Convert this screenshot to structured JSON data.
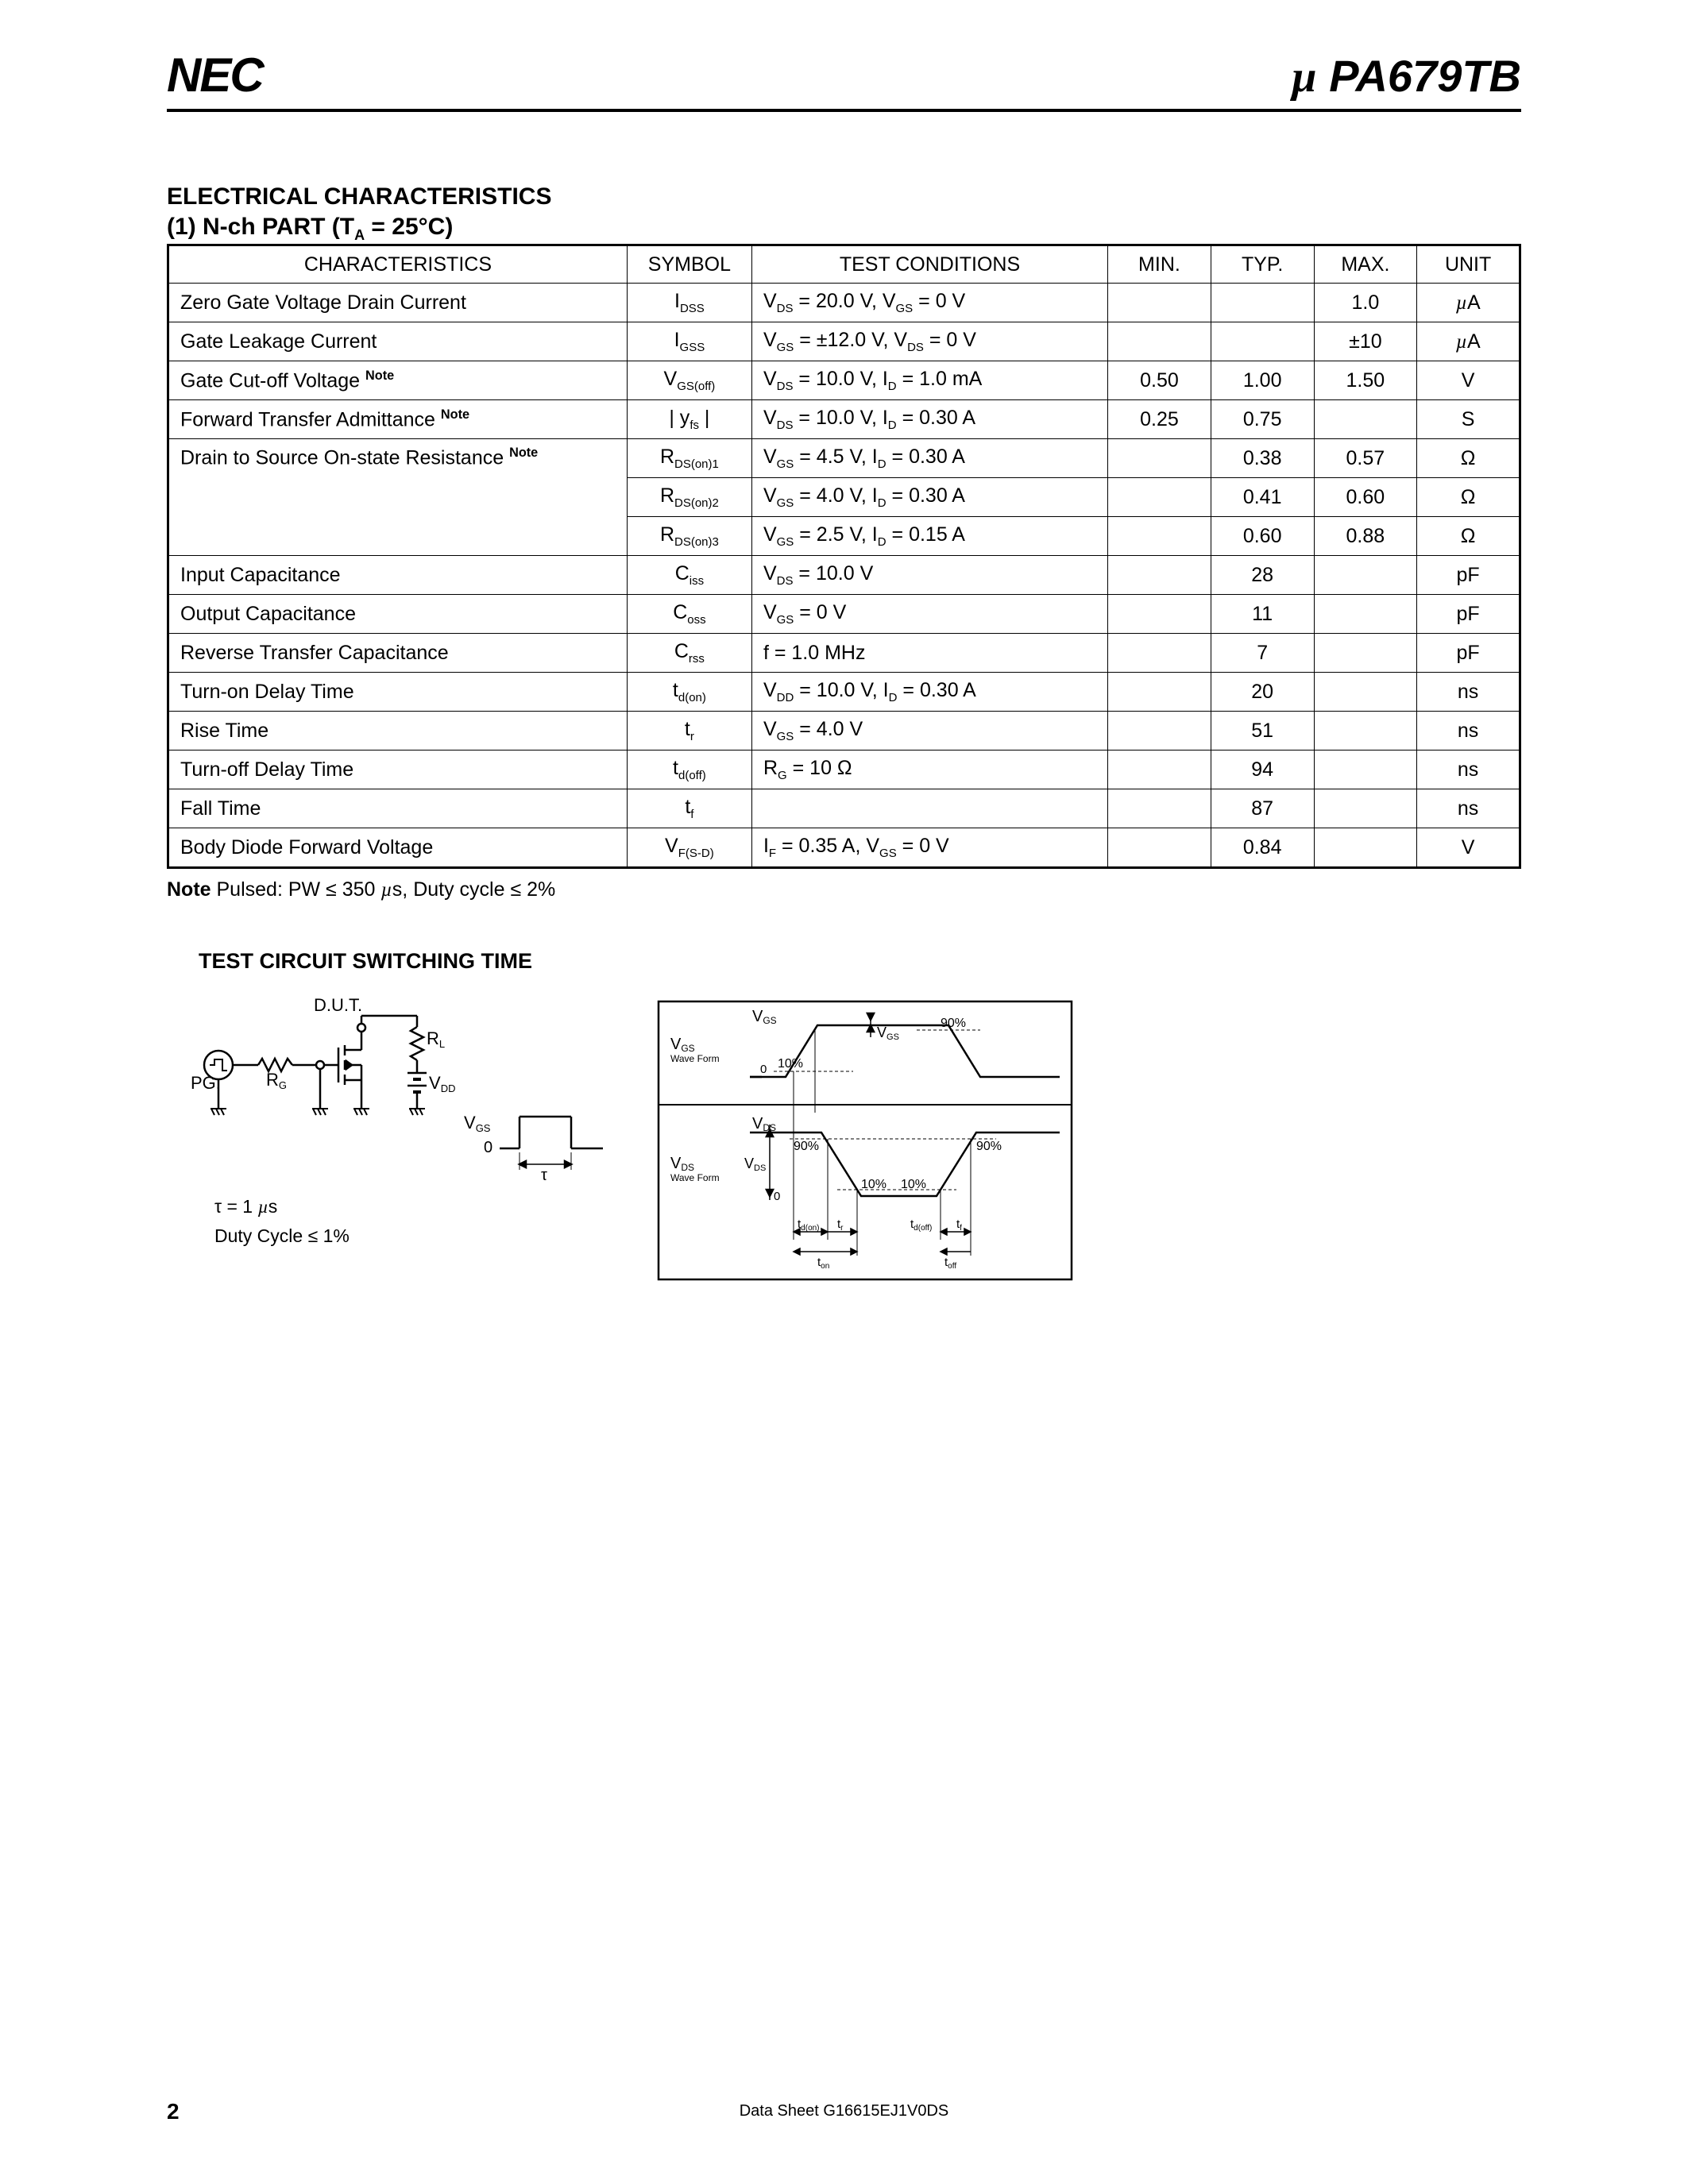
{
  "header": {
    "logo_text": "NEC",
    "part_prefix": "µ",
    "part_number": " PA679TB"
  },
  "section": {
    "title": "ELECTRICAL  CHARACTERISTICS",
    "subtitle_prefix": "(1)  N-ch PART (T",
    "subtitle_sub": "A",
    "subtitle_suffix": " = 25°C)"
  },
  "table": {
    "headers": [
      "CHARACTERISTICS",
      "SYMBOL",
      "TEST CONDITIONS",
      "MIN.",
      "TYP.",
      "MAX.",
      "UNIT"
    ],
    "rows": [
      {
        "char": "Zero Gate Voltage Drain Current",
        "note": false,
        "sym_html": "I<sub>DSS</sub>",
        "cond_html": "V<sub>DS</sub> = 20.0 V, V<sub>GS</sub> = 0 V",
        "min": "",
        "typ": "",
        "max": "1.0",
        "unit_html": "<span class='mu'>µ</span>A"
      },
      {
        "char": "Gate Leakage Current",
        "note": false,
        "sym_html": "I<sub>GSS</sub>",
        "cond_html": "V<sub>GS</sub> = ±12.0 V, V<sub>DS</sub> = 0 V",
        "min": "",
        "typ": "",
        "max": "±10",
        "unit_html": "<span class='mu'>µ</span>A"
      },
      {
        "char": "Gate Cut-off Voltage",
        "note": true,
        "sym_html": "V<sub>GS(off)</sub>",
        "cond_html": "V<sub>DS</sub> = 10.0 V, I<sub>D</sub> = 1.0 mA",
        "min": "0.50",
        "typ": "1.00",
        "max": "1.50",
        "unit_html": "V"
      },
      {
        "char": "Forward Transfer Admittance",
        "note": true,
        "sym_html": "| y<sub>fs</sub> |",
        "cond_html": "V<sub>DS</sub> = 10.0 V, I<sub>D</sub> = 0.30 A",
        "min": "0.25",
        "typ": "0.75",
        "max": "",
        "unit_html": "S"
      },
      {
        "char": "Drain to Source On-state Resistance",
        "note": true,
        "rowspan": 3,
        "sym_html": "R<sub>DS(on)1</sub>",
        "cond_html": "V<sub>GS</sub> = 4.5 V, I<sub>D</sub> = 0.30 A",
        "min": "",
        "typ": "0.38",
        "max": "0.57",
        "unit_html": "Ω"
      },
      {
        "char_skip": true,
        "sym_html": "R<sub>DS(on)2</sub>",
        "cond_html": "V<sub>GS</sub> = 4.0 V, I<sub>D</sub> = 0.30 A",
        "min": "",
        "typ": "0.41",
        "max": "0.60",
        "unit_html": "Ω"
      },
      {
        "char_skip": true,
        "sym_html": "R<sub>DS(on)3</sub>",
        "cond_html": "V<sub>GS</sub> = 2.5 V, I<sub>D</sub> = 0.15 A",
        "min": "",
        "typ": "0.60",
        "max": "0.88",
        "unit_html": "Ω"
      },
      {
        "char": "Input Capacitance",
        "note": false,
        "sym_html": "C<sub>iss</sub>",
        "cond_html": "V<sub>DS</sub> = 10.0 V",
        "min": "",
        "typ": "28",
        "max": "",
        "unit_html": "pF"
      },
      {
        "char": "Output Capacitance",
        "note": false,
        "sym_html": "C<sub>oss</sub>",
        "cond_html": "V<sub>GS</sub> = 0 V",
        "min": "",
        "typ": "11",
        "max": "",
        "unit_html": "pF"
      },
      {
        "char": "Reverse Transfer Capacitance",
        "note": false,
        "sym_html": "C<sub>rss</sub>",
        "cond_html": "f = 1.0 MHz",
        "min": "",
        "typ": "7",
        "max": "",
        "unit_html": "pF"
      },
      {
        "char": "Turn-on Delay Time",
        "note": false,
        "sym_html": "t<sub>d(on)</sub>",
        "cond_html": "V<sub>DD</sub> = 10.0 V, I<sub>D</sub> = 0.30 A",
        "min": "",
        "typ": "20",
        "max": "",
        "unit_html": "ns"
      },
      {
        "char": "Rise Time",
        "note": false,
        "sym_html": "t<sub>r</sub>",
        "cond_html": "V<sub>GS</sub> = 4.0 V",
        "min": "",
        "typ": "51",
        "max": "",
        "unit_html": "ns"
      },
      {
        "char": "Turn-off Delay Time",
        "note": false,
        "sym_html": "t<sub>d(off)</sub>",
        "cond_html": "R<sub>G</sub> = 10 Ω",
        "min": "",
        "typ": "94",
        "max": "",
        "unit_html": "ns"
      },
      {
        "char": "Fall Time",
        "note": false,
        "sym_html": "t<sub>f</sub>",
        "cond_html": "",
        "min": "",
        "typ": "87",
        "max": "",
        "unit_html": "ns"
      },
      {
        "char": "Body Diode Forward Voltage",
        "note": false,
        "sym_html": "V<sub>F(S-D)</sub>",
        "cond_html": "I<sub>F</sub> = 0.35 A, V<sub>GS</sub> = 0 V",
        "min": "",
        "typ": "0.84",
        "max": "",
        "unit_html": "V"
      }
    ]
  },
  "note": {
    "label": "Note",
    "text_html": "  Pulsed: PW ≤ 350 <span class='mu'>µ</span>s, Duty cycle ≤ 2%"
  },
  "test_circuit": {
    "title": "TEST CIRCUIT    SWITCHING TIME",
    "labels": {
      "dut": "D.U.T.",
      "rl": "R",
      "rl_sub": "L",
      "rg": "R",
      "rg_sub": "G",
      "pg": "PG.",
      "vdd": "V",
      "vdd_sub": "DD",
      "vgs_wave": "V",
      "vgs_sub": "GS",
      "zero": "0",
      "tau": "τ",
      "tau_eq": "τ = 1 ",
      "tau_unit": "µ",
      "tau_s": "s",
      "duty": "Duty Cycle ≤ 1%"
    },
    "timing": {
      "vgs_label": "V",
      "vgs_sub": "GS",
      "waveform": "Wave Form",
      "vds_label": "V",
      "vds_sub": "DS",
      "zero": "0",
      "p10": "10%",
      "p90": "90%",
      "tdon": "t",
      "tdon_sub": "d(on)",
      "tr": "t",
      "tr_sub": "r",
      "ton": "t",
      "ton_sub": "on",
      "tdoff": "t",
      "tdoff_sub": "d(off)",
      "tf": "t",
      "tf_sub": "f",
      "toff": "t",
      "toff_sub": "off"
    }
  },
  "footer": {
    "text": "Data Sheet  G16615EJ1V0DS",
    "page": "2"
  }
}
